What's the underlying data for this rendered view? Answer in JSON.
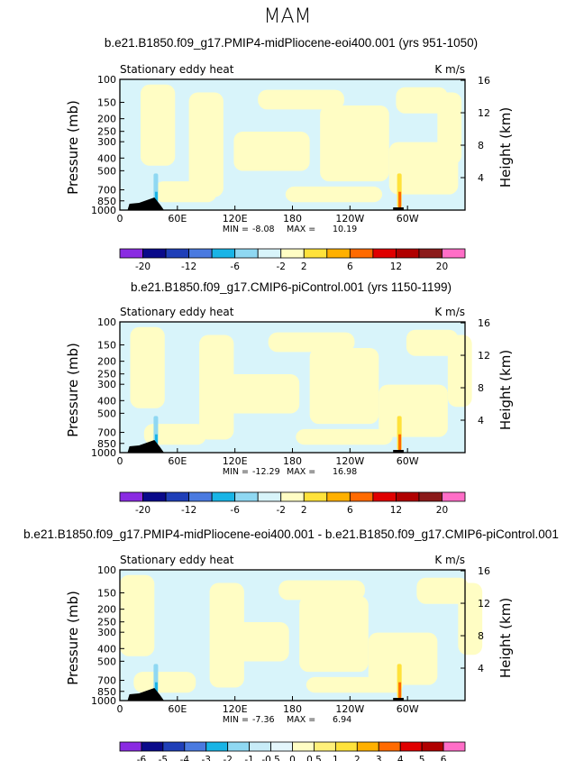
{
  "figure_title": "MAM",
  "chart_data": [
    {
      "type": "heatmap",
      "title": "b.e21.B1850.f09_g17.PMIP4-midPliocene-eoi400.001 (yrs 951-1050)",
      "left_string": "Stationary eddy heat",
      "right_string": "K m/s",
      "ylabel": "Pressure (mb)",
      "ylabel_right": "Height (km)",
      "x_ticks": [
        "0",
        "60E",
        "120E",
        "180",
        "120W",
        "60W"
      ],
      "y_ticks": [
        "100",
        "150",
        "200",
        "250",
        "300",
        "400",
        "500",
        "700",
        "850",
        "1000"
      ],
      "y_right_ticks": [
        "16",
        "12",
        "8",
        "4"
      ],
      "min_label": "MIN =",
      "min": "-8.08",
      "max_label": "MAX =",
      "max": "10.19",
      "colorbar_labels": [
        "-20",
        "-12",
        "-6",
        "-2",
        "2",
        "6",
        "12",
        "20"
      ],
      "colorbar_colors": [
        "#8a2be2",
        "#0a0a8a",
        "#1f3fb8",
        "#4a7ae0",
        "#19b4e6",
        "#8fd8f2",
        "#d8f4fa",
        "#fffdc4",
        "#ffe23b",
        "#ffb000",
        "#ff6a00",
        "#e00000",
        "#b00000",
        "#8b1a1a",
        "#ff6ec7"
      ]
    },
    {
      "type": "heatmap",
      "title": "b.e21.B1850.f09_g17.CMIP6-piControl.001 (yrs 1150-1199)",
      "left_string": "Stationary eddy heat",
      "right_string": "K m/s",
      "ylabel": "Pressure (mb)",
      "ylabel_right": "Height (km)",
      "x_ticks": [
        "0",
        "60E",
        "120E",
        "180",
        "120W",
        "60W"
      ],
      "y_ticks": [
        "100",
        "150",
        "200",
        "250",
        "300",
        "400",
        "500",
        "700",
        "850",
        "1000"
      ],
      "y_right_ticks": [
        "16",
        "12",
        "8",
        "4"
      ],
      "min_label": "MIN =",
      "min": "-12.29",
      "max_label": "MAX =",
      "max": "16.98",
      "colorbar_labels": [
        "-20",
        "-12",
        "-6",
        "-2",
        "2",
        "6",
        "12",
        "20"
      ],
      "colorbar_colors": [
        "#8a2be2",
        "#0a0a8a",
        "#1f3fb8",
        "#4a7ae0",
        "#19b4e6",
        "#8fd8f2",
        "#d8f4fa",
        "#fffdc4",
        "#ffe23b",
        "#ffb000",
        "#ff6a00",
        "#e00000",
        "#b00000",
        "#8b1a1a",
        "#ff6ec7"
      ]
    },
    {
      "type": "heatmap",
      "title": "b.e21.B1850.f09_g17.PMIP4-midPliocene-eoi400.001 - b.e21.B1850.f09_g17.CMIP6-piControl.001",
      "left_string": "Stationary eddy heat",
      "right_string": "K m/s",
      "ylabel": "Pressure (mb)",
      "ylabel_right": "Height (km)",
      "x_ticks": [
        "0",
        "60E",
        "120E",
        "180",
        "120W",
        "60W"
      ],
      "y_ticks": [
        "100",
        "150",
        "200",
        "250",
        "300",
        "400",
        "500",
        "700",
        "850",
        "1000"
      ],
      "y_right_ticks": [
        "16",
        "12",
        "8",
        "4"
      ],
      "min_label": "MIN =",
      "min": "-7.36",
      "max_label": "MAX =",
      "max": "6.94",
      "colorbar_labels": [
        "-6",
        "-5",
        "-4",
        "-3",
        "-2",
        "-1",
        "-0.5",
        "0",
        "0.5",
        "1",
        "2",
        "3",
        "4",
        "5",
        "6"
      ],
      "colorbar_colors": [
        "#8a2be2",
        "#0a0a8a",
        "#1f3fb8",
        "#4a7ae0",
        "#19b4e6",
        "#8fd8f2",
        "#c8ecf8",
        "#e4f6fc",
        "#fffdc4",
        "#fff07a",
        "#ffe23b",
        "#ffb000",
        "#ff6a00",
        "#e00000",
        "#b00000",
        "#ff6ec7"
      ]
    }
  ]
}
